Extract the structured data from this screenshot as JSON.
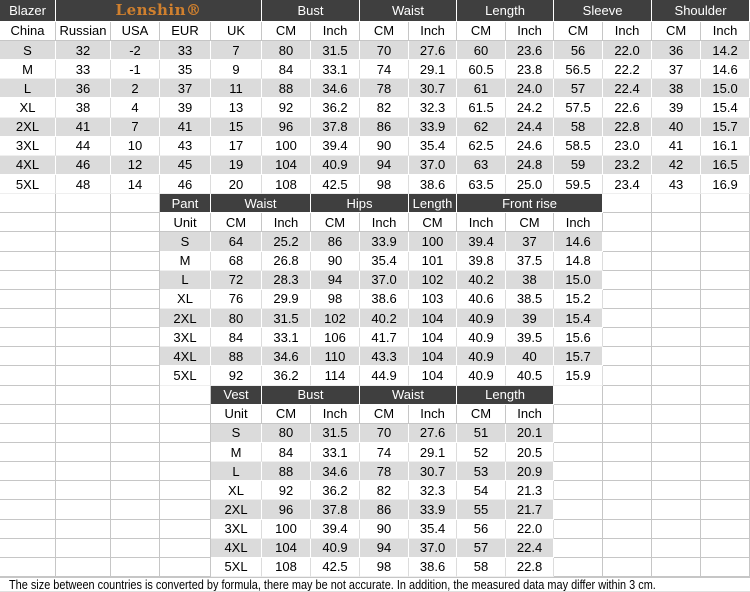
{
  "chart_data": [
    {
      "type": "table",
      "name": "blazer",
      "corner_label": "Blazer",
      "brand": "Lenshin®",
      "groups": [
        {
          "label": "Bust",
          "span": 2
        },
        {
          "label": "Waist",
          "span": 2
        },
        {
          "label": "Length",
          "span": 2
        },
        {
          "label": "Sleeve",
          "span": 2
        },
        {
          "label": "Shoulder",
          "span": 2
        }
      ],
      "columns": [
        "China",
        "Russian",
        "USA",
        "EUR",
        "UK",
        "CM",
        "Inch",
        "CM",
        "Inch",
        "CM",
        "Inch",
        "CM",
        "Inch",
        "CM",
        "Inch"
      ],
      "rows": [
        [
          "S",
          "32",
          "-2",
          "33",
          "7",
          "80",
          "31.5",
          "70",
          "27.6",
          "60",
          "23.6",
          "56",
          "22.0",
          "36",
          "14.2"
        ],
        [
          "M",
          "33",
          "-1",
          "35",
          "9",
          "84",
          "33.1",
          "74",
          "29.1",
          "60.5",
          "23.8",
          "56.5",
          "22.2",
          "37",
          "14.6"
        ],
        [
          "L",
          "36",
          "2",
          "37",
          "11",
          "88",
          "34.6",
          "78",
          "30.7",
          "61",
          "24.0",
          "57",
          "22.4",
          "38",
          "15.0"
        ],
        [
          "XL",
          "38",
          "4",
          "39",
          "13",
          "92",
          "36.2",
          "82",
          "32.3",
          "61.5",
          "24.2",
          "57.5",
          "22.6",
          "39",
          "15.4"
        ],
        [
          "2XL",
          "41",
          "7",
          "41",
          "15",
          "96",
          "37.8",
          "86",
          "33.9",
          "62",
          "24.4",
          "58",
          "22.8",
          "40",
          "15.7"
        ],
        [
          "3XL",
          "44",
          "10",
          "43",
          "17",
          "100",
          "39.4",
          "90",
          "35.4",
          "62.5",
          "24.6",
          "58.5",
          "23.0",
          "41",
          "16.1"
        ],
        [
          "4XL",
          "46",
          "12",
          "45",
          "19",
          "104",
          "40.9",
          "94",
          "37.0",
          "63",
          "24.8",
          "59",
          "23.2",
          "42",
          "16.5"
        ],
        [
          "5XL",
          "48",
          "14",
          "46",
          "20",
          "108",
          "42.5",
          "98",
          "38.6",
          "63.5",
          "25.0",
          "59.5",
          "23.4",
          "43",
          "16.9"
        ]
      ]
    },
    {
      "type": "table",
      "name": "pant",
      "corner_label": "Pant",
      "groups": [
        {
          "label": "Waist",
          "span": 2
        },
        {
          "label": "Hips",
          "span": 2
        },
        {
          "label": "Length",
          "span": 1
        },
        {
          "label": "Front rise",
          "span": 3
        }
      ],
      "columns": [
        "Unit",
        "CM",
        "Inch",
        "CM",
        "Inch",
        "CM",
        "Inch",
        "CM",
        "Inch"
      ],
      "rows": [
        [
          "S",
          "64",
          "25.2",
          "86",
          "33.9",
          "100",
          "39.4",
          "37",
          "14.6"
        ],
        [
          "M",
          "68",
          "26.8",
          "90",
          "35.4",
          "101",
          "39.8",
          "37.5",
          "14.8"
        ],
        [
          "L",
          "72",
          "28.3",
          "94",
          "37.0",
          "102",
          "40.2",
          "38",
          "15.0"
        ],
        [
          "XL",
          "76",
          "29.9",
          "98",
          "38.6",
          "103",
          "40.6",
          "38.5",
          "15.2"
        ],
        [
          "2XL",
          "80",
          "31.5",
          "102",
          "40.2",
          "104",
          "40.9",
          "39",
          "15.4"
        ],
        [
          "3XL",
          "84",
          "33.1",
          "106",
          "41.7",
          "104",
          "40.9",
          "39.5",
          "15.6"
        ],
        [
          "4XL",
          "88",
          "34.6",
          "110",
          "43.3",
          "104",
          "40.9",
          "40",
          "15.7"
        ],
        [
          "5XL",
          "92",
          "36.2",
          "114",
          "44.9",
          "104",
          "40.9",
          "40.5",
          "15.9"
        ]
      ]
    },
    {
      "type": "table",
      "name": "vest",
      "corner_label": "Vest",
      "groups": [
        {
          "label": "Bust",
          "span": 2
        },
        {
          "label": "Waist",
          "span": 2
        },
        {
          "label": "Length",
          "span": 2
        }
      ],
      "columns": [
        "Unit",
        "CM",
        "Inch",
        "CM",
        "Inch",
        "CM",
        "Inch"
      ],
      "rows": [
        [
          "S",
          "80",
          "31.5",
          "70",
          "27.6",
          "51",
          "20.1"
        ],
        [
          "M",
          "84",
          "33.1",
          "74",
          "29.1",
          "52",
          "20.5"
        ],
        [
          "L",
          "88",
          "34.6",
          "78",
          "30.7",
          "53",
          "20.9"
        ],
        [
          "XL",
          "92",
          "36.2",
          "82",
          "32.3",
          "54",
          "21.3"
        ],
        [
          "2XL",
          "96",
          "37.8",
          "86",
          "33.9",
          "55",
          "21.7"
        ],
        [
          "3XL",
          "100",
          "39.4",
          "90",
          "35.4",
          "56",
          "22.0"
        ],
        [
          "4XL",
          "104",
          "40.9",
          "94",
          "37.0",
          "57",
          "22.4"
        ],
        [
          "5XL",
          "108",
          "42.5",
          "98",
          "38.6",
          "58",
          "22.8"
        ]
      ]
    }
  ],
  "note": "The size between countries is converted by formula, there may be not accurate. In addition, the measured data may differ within 3 cm.",
  "colors": {
    "header_bg": "#3f3f3f",
    "header_text": "#ffffff",
    "brand_orange": "#d0802e",
    "row_stripe": "#dbdbdb",
    "gridline": "#c6c6c6"
  }
}
